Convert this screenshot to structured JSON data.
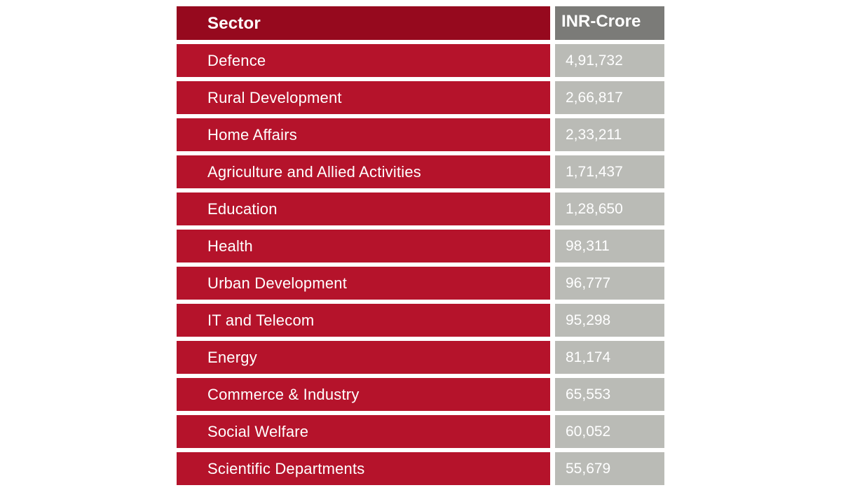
{
  "colors": {
    "header_sector_bg": "#96091e",
    "header_value_bg": "#7b7b78",
    "row_sector_bg": "#b5132b",
    "row_value_bg": "#babbb6",
    "text": "#ffffff"
  },
  "chart_data": {
    "type": "table",
    "columns": [
      "Sector",
      "INR-Crore"
    ],
    "rows": [
      {
        "sector": "Defence",
        "value": "4,91,732"
      },
      {
        "sector": "Rural Development",
        "value": "2,66,817"
      },
      {
        "sector": "Home Affairs",
        "value": "2,33,211"
      },
      {
        "sector": "Agriculture and Allied Activities",
        "value": "1,71,437"
      },
      {
        "sector": "Education",
        "value": "1,28,650"
      },
      {
        "sector": "Health",
        "value": "98,311"
      },
      {
        "sector": "Urban Development",
        "value": "96,777"
      },
      {
        "sector": "IT and Telecom",
        "value": "95,298"
      },
      {
        "sector": "Energy",
        "value": "81,174"
      },
      {
        "sector": "Commerce & Industry",
        "value": "65,553"
      },
      {
        "sector": "Social Welfare",
        "value": "60,052"
      },
      {
        "sector": "Scientific Departments",
        "value": "55,679"
      }
    ]
  }
}
